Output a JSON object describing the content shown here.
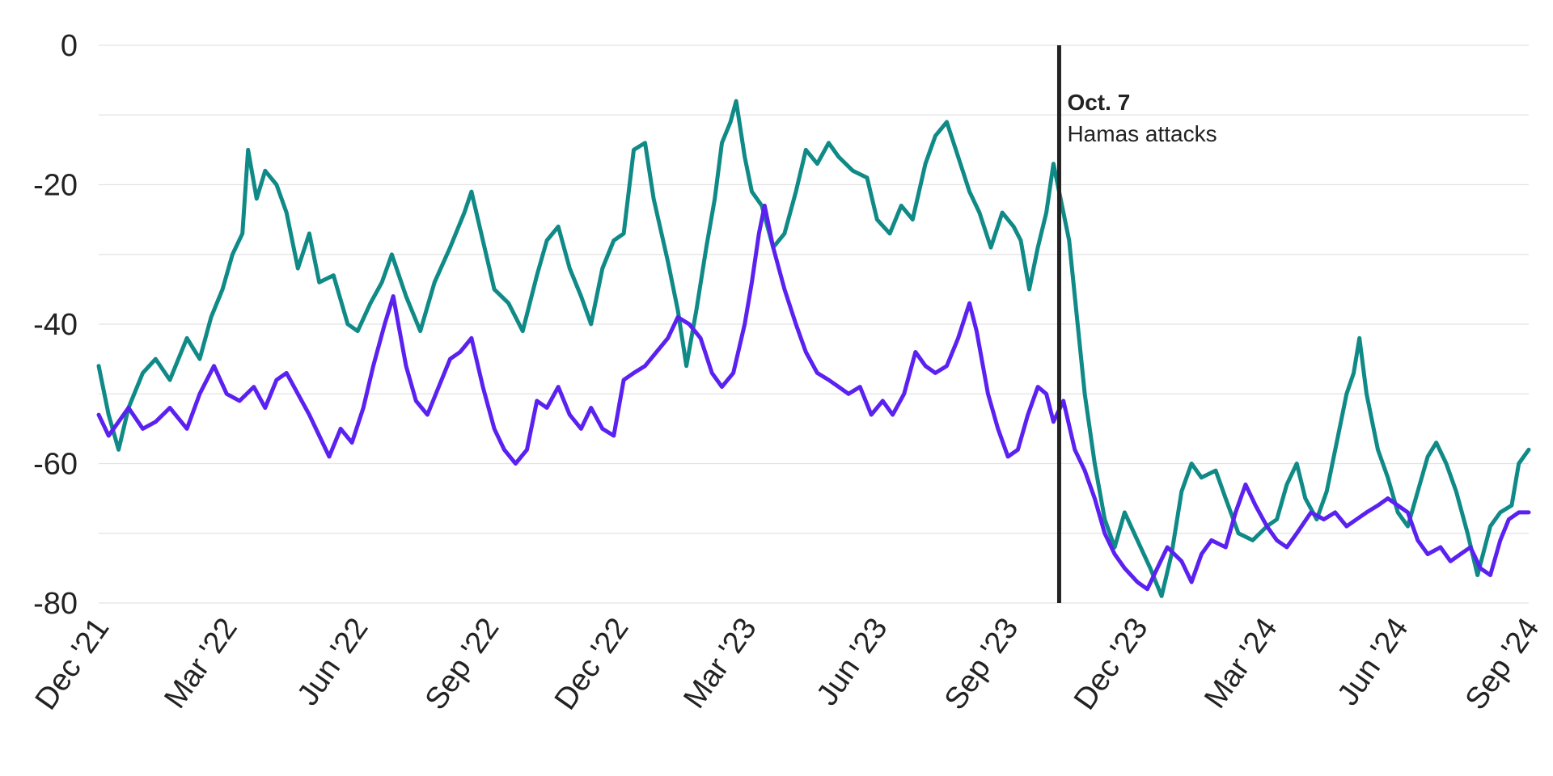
{
  "chart_data": {
    "type": "line",
    "title": "",
    "xlabel": "",
    "ylabel": "",
    "ylim": [
      -80,
      0
    ],
    "y_ticks": [
      0,
      -20,
      -40,
      -60,
      -80
    ],
    "y_tick_labels": [
      "0",
      "-20",
      "-40",
      "-60",
      "-80"
    ],
    "x_range": [
      "2021-12-01",
      "2024-09-01"
    ],
    "x_ticks": [
      {
        "date": "2021-12-01",
        "label": "Dec '21"
      },
      {
        "date": "2022-03-01",
        "label": "Mar '22"
      },
      {
        "date": "2022-06-01",
        "label": "Jun '22"
      },
      {
        "date": "2022-09-01",
        "label": "Sep '22"
      },
      {
        "date": "2022-12-01",
        "label": "Dec '22"
      },
      {
        "date": "2023-03-01",
        "label": "Mar '23"
      },
      {
        "date": "2023-06-01",
        "label": "Jun '23"
      },
      {
        "date": "2023-09-01",
        "label": "Sep '23"
      },
      {
        "date": "2023-12-01",
        "label": "Dec '23"
      },
      {
        "date": "2024-03-01",
        "label": "Mar '24"
      },
      {
        "date": "2024-06-01",
        "label": "Jun '24"
      },
      {
        "date": "2024-09-01",
        "label": "Sep '24"
      }
    ],
    "grid": true,
    "legend": "none",
    "annotation": {
      "date": "2023-10-07",
      "title": "Oct. 7",
      "text": "Hamas attacks"
    },
    "series": [
      {
        "color": "#0f8a86",
        "points": [
          [
            "2021-12-01",
            -46
          ],
          [
            "2021-12-08",
            -53
          ],
          [
            "2021-12-15",
            -58
          ],
          [
            "2021-12-22",
            -52
          ],
          [
            "2022-01-01",
            -47
          ],
          [
            "2022-01-10",
            -45
          ],
          [
            "2022-01-20",
            -48
          ],
          [
            "2022-02-01",
            -42
          ],
          [
            "2022-02-10",
            -45
          ],
          [
            "2022-02-18",
            -39
          ],
          [
            "2022-02-26",
            -35
          ],
          [
            "2022-03-05",
            -30
          ],
          [
            "2022-03-12",
            -27
          ],
          [
            "2022-03-16",
            -15
          ],
          [
            "2022-03-22",
            -22
          ],
          [
            "2022-03-28",
            -18
          ],
          [
            "2022-04-05",
            -20
          ],
          [
            "2022-04-12",
            -24
          ],
          [
            "2022-04-20",
            -32
          ],
          [
            "2022-04-28",
            -27
          ],
          [
            "2022-05-05",
            -34
          ],
          [
            "2022-05-15",
            -33
          ],
          [
            "2022-05-25",
            -40
          ],
          [
            "2022-06-01",
            -41
          ],
          [
            "2022-06-10",
            -37
          ],
          [
            "2022-06-18",
            -34
          ],
          [
            "2022-06-25",
            -30
          ],
          [
            "2022-07-05",
            -36
          ],
          [
            "2022-07-15",
            -41
          ],
          [
            "2022-07-25",
            -34
          ],
          [
            "2022-08-05",
            -29
          ],
          [
            "2022-08-15",
            -24
          ],
          [
            "2022-08-20",
            -21
          ],
          [
            "2022-08-28",
            -28
          ],
          [
            "2022-09-05",
            -35
          ],
          [
            "2022-09-15",
            -37
          ],
          [
            "2022-09-25",
            -41
          ],
          [
            "2022-10-05",
            -33
          ],
          [
            "2022-10-12",
            -28
          ],
          [
            "2022-10-20",
            -26
          ],
          [
            "2022-10-28",
            -32
          ],
          [
            "2022-11-05",
            -36
          ],
          [
            "2022-11-12",
            -40
          ],
          [
            "2022-11-20",
            -32
          ],
          [
            "2022-11-28",
            -28
          ],
          [
            "2022-12-05",
            -27
          ],
          [
            "2022-12-12",
            -15
          ],
          [
            "2022-12-20",
            -14
          ],
          [
            "2022-12-26",
            -22
          ],
          [
            "2023-01-05",
            -31
          ],
          [
            "2023-01-12",
            -38
          ],
          [
            "2023-01-18",
            -46
          ],
          [
            "2023-01-25",
            -38
          ],
          [
            "2023-02-01",
            -29
          ],
          [
            "2023-02-07",
            -22
          ],
          [
            "2023-02-12",
            -14
          ],
          [
            "2023-02-18",
            -11
          ],
          [
            "2023-02-22",
            -8
          ],
          [
            "2023-02-28",
            -16
          ],
          [
            "2023-03-05",
            -21
          ],
          [
            "2023-03-12",
            -23
          ],
          [
            "2023-03-20",
            -29
          ],
          [
            "2023-03-28",
            -27
          ],
          [
            "2023-04-05",
            -21
          ],
          [
            "2023-04-12",
            -15
          ],
          [
            "2023-04-20",
            -17
          ],
          [
            "2023-04-28",
            -14
          ],
          [
            "2023-05-05",
            -16
          ],
          [
            "2023-05-15",
            -18
          ],
          [
            "2023-05-25",
            -19
          ],
          [
            "2023-06-01",
            -25
          ],
          [
            "2023-06-10",
            -27
          ],
          [
            "2023-06-18",
            -23
          ],
          [
            "2023-06-26",
            -25
          ],
          [
            "2023-07-05",
            -17
          ],
          [
            "2023-07-12",
            -13
          ],
          [
            "2023-07-20",
            -11
          ],
          [
            "2023-07-28",
            -16
          ],
          [
            "2023-08-05",
            -21
          ],
          [
            "2023-08-12",
            -24
          ],
          [
            "2023-08-20",
            -29
          ],
          [
            "2023-08-28",
            -24
          ],
          [
            "2023-09-05",
            -26
          ],
          [
            "2023-09-10",
            -28
          ],
          [
            "2023-09-16",
            -35
          ],
          [
            "2023-09-22",
            -29
          ],
          [
            "2023-09-28",
            -24
          ],
          [
            "2023-10-03",
            -17
          ],
          [
            "2023-10-08",
            -22
          ],
          [
            "2023-10-14",
            -28
          ],
          [
            "2023-10-20",
            -40
          ],
          [
            "2023-10-25",
            -50
          ],
          [
            "2023-11-01",
            -60
          ],
          [
            "2023-11-08",
            -68
          ],
          [
            "2023-11-15",
            -72
          ],
          [
            "2023-11-22",
            -67
          ],
          [
            "2023-12-01",
            -71
          ],
          [
            "2023-12-10",
            -75
          ],
          [
            "2023-12-18",
            -79
          ],
          [
            "2023-12-25",
            -73
          ],
          [
            "2024-01-01",
            -64
          ],
          [
            "2024-01-08",
            -60
          ],
          [
            "2024-01-15",
            -62
          ],
          [
            "2024-01-25",
            -61
          ],
          [
            "2024-02-01",
            -65
          ],
          [
            "2024-02-10",
            -70
          ],
          [
            "2024-02-20",
            -71
          ],
          [
            "2024-03-01",
            -69
          ],
          [
            "2024-03-08",
            -68
          ],
          [
            "2024-03-15",
            -63
          ],
          [
            "2024-03-22",
            -60
          ],
          [
            "2024-03-28",
            -65
          ],
          [
            "2024-04-05",
            -68
          ],
          [
            "2024-04-12",
            -64
          ],
          [
            "2024-04-20",
            -56
          ],
          [
            "2024-04-26",
            -50
          ],
          [
            "2024-05-01",
            -47
          ],
          [
            "2024-05-05",
            -42
          ],
          [
            "2024-05-10",
            -50
          ],
          [
            "2024-05-18",
            -58
          ],
          [
            "2024-05-25",
            -62
          ],
          [
            "2024-06-01",
            -67
          ],
          [
            "2024-06-08",
            -69
          ],
          [
            "2024-06-15",
            -64
          ],
          [
            "2024-06-22",
            -59
          ],
          [
            "2024-06-28",
            -57
          ],
          [
            "2024-07-05",
            -60
          ],
          [
            "2024-07-12",
            -64
          ],
          [
            "2024-07-20",
            -70
          ],
          [
            "2024-07-27",
            -76
          ],
          [
            "2024-08-05",
            -69
          ],
          [
            "2024-08-12",
            -67
          ],
          [
            "2024-08-20",
            -66
          ],
          [
            "2024-08-25",
            -60
          ],
          [
            "2024-09-01",
            -58
          ]
        ]
      },
      {
        "color": "#5b21f0",
        "points": [
          [
            "2021-12-01",
            -53
          ],
          [
            "2021-12-08",
            -56
          ],
          [
            "2021-12-15",
            -54
          ],
          [
            "2021-12-22",
            -52
          ],
          [
            "2022-01-01",
            -55
          ],
          [
            "2022-01-10",
            -54
          ],
          [
            "2022-01-20",
            -52
          ],
          [
            "2022-02-01",
            -55
          ],
          [
            "2022-02-10",
            -50
          ],
          [
            "2022-02-20",
            -46
          ],
          [
            "2022-03-01",
            -50
          ],
          [
            "2022-03-10",
            -51
          ],
          [
            "2022-03-20",
            -49
          ],
          [
            "2022-03-28",
            -52
          ],
          [
            "2022-04-05",
            -48
          ],
          [
            "2022-04-12",
            -47
          ],
          [
            "2022-04-20",
            -50
          ],
          [
            "2022-04-28",
            -53
          ],
          [
            "2022-05-05",
            -56
          ],
          [
            "2022-05-12",
            -59
          ],
          [
            "2022-05-20",
            -55
          ],
          [
            "2022-05-28",
            -57
          ],
          [
            "2022-06-05",
            -52
          ],
          [
            "2022-06-12",
            -46
          ],
          [
            "2022-06-20",
            -40
          ],
          [
            "2022-06-26",
            -36
          ],
          [
            "2022-07-05",
            -46
          ],
          [
            "2022-07-12",
            -51
          ],
          [
            "2022-07-20",
            -53
          ],
          [
            "2022-07-28",
            -49
          ],
          [
            "2022-08-05",
            -45
          ],
          [
            "2022-08-12",
            -44
          ],
          [
            "2022-08-20",
            -42
          ],
          [
            "2022-08-28",
            -49
          ],
          [
            "2022-09-05",
            -55
          ],
          [
            "2022-09-12",
            -58
          ],
          [
            "2022-09-20",
            -60
          ],
          [
            "2022-09-28",
            -58
          ],
          [
            "2022-10-05",
            -51
          ],
          [
            "2022-10-12",
            -52
          ],
          [
            "2022-10-20",
            -49
          ],
          [
            "2022-10-28",
            -53
          ],
          [
            "2022-11-05",
            -55
          ],
          [
            "2022-11-12",
            -52
          ],
          [
            "2022-11-20",
            -55
          ],
          [
            "2022-11-28",
            -56
          ],
          [
            "2022-12-05",
            -48
          ],
          [
            "2022-12-12",
            -47
          ],
          [
            "2022-12-20",
            -46
          ],
          [
            "2022-12-28",
            -44
          ],
          [
            "2023-01-05",
            -42
          ],
          [
            "2023-01-12",
            -39
          ],
          [
            "2023-01-20",
            -40
          ],
          [
            "2023-01-28",
            -42
          ],
          [
            "2023-02-05",
            -47
          ],
          [
            "2023-02-12",
            -49
          ],
          [
            "2023-02-20",
            -47
          ],
          [
            "2023-02-28",
            -40
          ],
          [
            "2023-03-05",
            -34
          ],
          [
            "2023-03-10",
            -27
          ],
          [
            "2023-03-14",
            -23
          ],
          [
            "2023-03-20",
            -29
          ],
          [
            "2023-03-28",
            -35
          ],
          [
            "2023-04-05",
            -40
          ],
          [
            "2023-04-12",
            -44
          ],
          [
            "2023-04-20",
            -47
          ],
          [
            "2023-04-28",
            -48
          ],
          [
            "2023-05-05",
            -49
          ],
          [
            "2023-05-12",
            -50
          ],
          [
            "2023-05-20",
            -49
          ],
          [
            "2023-05-28",
            -53
          ],
          [
            "2023-06-05",
            -51
          ],
          [
            "2023-06-12",
            -53
          ],
          [
            "2023-06-20",
            -50
          ],
          [
            "2023-06-28",
            -44
          ],
          [
            "2023-07-05",
            -46
          ],
          [
            "2023-07-12",
            -47
          ],
          [
            "2023-07-20",
            -46
          ],
          [
            "2023-07-28",
            -42
          ],
          [
            "2023-08-05",
            -37
          ],
          [
            "2023-08-10",
            -41
          ],
          [
            "2023-08-18",
            -50
          ],
          [
            "2023-08-25",
            -55
          ],
          [
            "2023-09-01",
            -59
          ],
          [
            "2023-09-08",
            -58
          ],
          [
            "2023-09-15",
            -53
          ],
          [
            "2023-09-22",
            -49
          ],
          [
            "2023-09-28",
            -50
          ],
          [
            "2023-10-03",
            -54
          ],
          [
            "2023-10-10",
            -51
          ],
          [
            "2023-10-18",
            -58
          ],
          [
            "2023-10-25",
            -61
          ],
          [
            "2023-11-01",
            -65
          ],
          [
            "2023-11-08",
            -70
          ],
          [
            "2023-11-15",
            -73
          ],
          [
            "2023-11-22",
            -75
          ],
          [
            "2023-12-01",
            -77
          ],
          [
            "2023-12-08",
            -78
          ],
          [
            "2023-12-15",
            -75
          ],
          [
            "2023-12-22",
            -72
          ],
          [
            "2024-01-01",
            -74
          ],
          [
            "2024-01-08",
            -77
          ],
          [
            "2024-01-15",
            -73
          ],
          [
            "2024-01-22",
            -71
          ],
          [
            "2024-02-01",
            -72
          ],
          [
            "2024-02-08",
            -67
          ],
          [
            "2024-02-15",
            -63
          ],
          [
            "2024-02-22",
            -66
          ],
          [
            "2024-03-01",
            -69
          ],
          [
            "2024-03-08",
            -71
          ],
          [
            "2024-03-15",
            -72
          ],
          [
            "2024-03-22",
            -70
          ],
          [
            "2024-04-01",
            -67
          ],
          [
            "2024-04-10",
            -68
          ],
          [
            "2024-04-18",
            -67
          ],
          [
            "2024-04-26",
            -69
          ],
          [
            "2024-05-03",
            -68
          ],
          [
            "2024-05-10",
            -67
          ],
          [
            "2024-05-18",
            -66
          ],
          [
            "2024-05-25",
            -65
          ],
          [
            "2024-06-01",
            -66
          ],
          [
            "2024-06-08",
            -67
          ],
          [
            "2024-06-15",
            -71
          ],
          [
            "2024-06-22",
            -73
          ],
          [
            "2024-07-01",
            -72
          ],
          [
            "2024-07-08",
            -74
          ],
          [
            "2024-07-15",
            -73
          ],
          [
            "2024-07-22",
            -72
          ],
          [
            "2024-07-29",
            -75
          ],
          [
            "2024-08-05",
            -76
          ],
          [
            "2024-08-12",
            -71
          ],
          [
            "2024-08-18",
            -68
          ],
          [
            "2024-08-25",
            -67
          ],
          [
            "2024-09-01",
            -67
          ]
        ]
      }
    ]
  }
}
